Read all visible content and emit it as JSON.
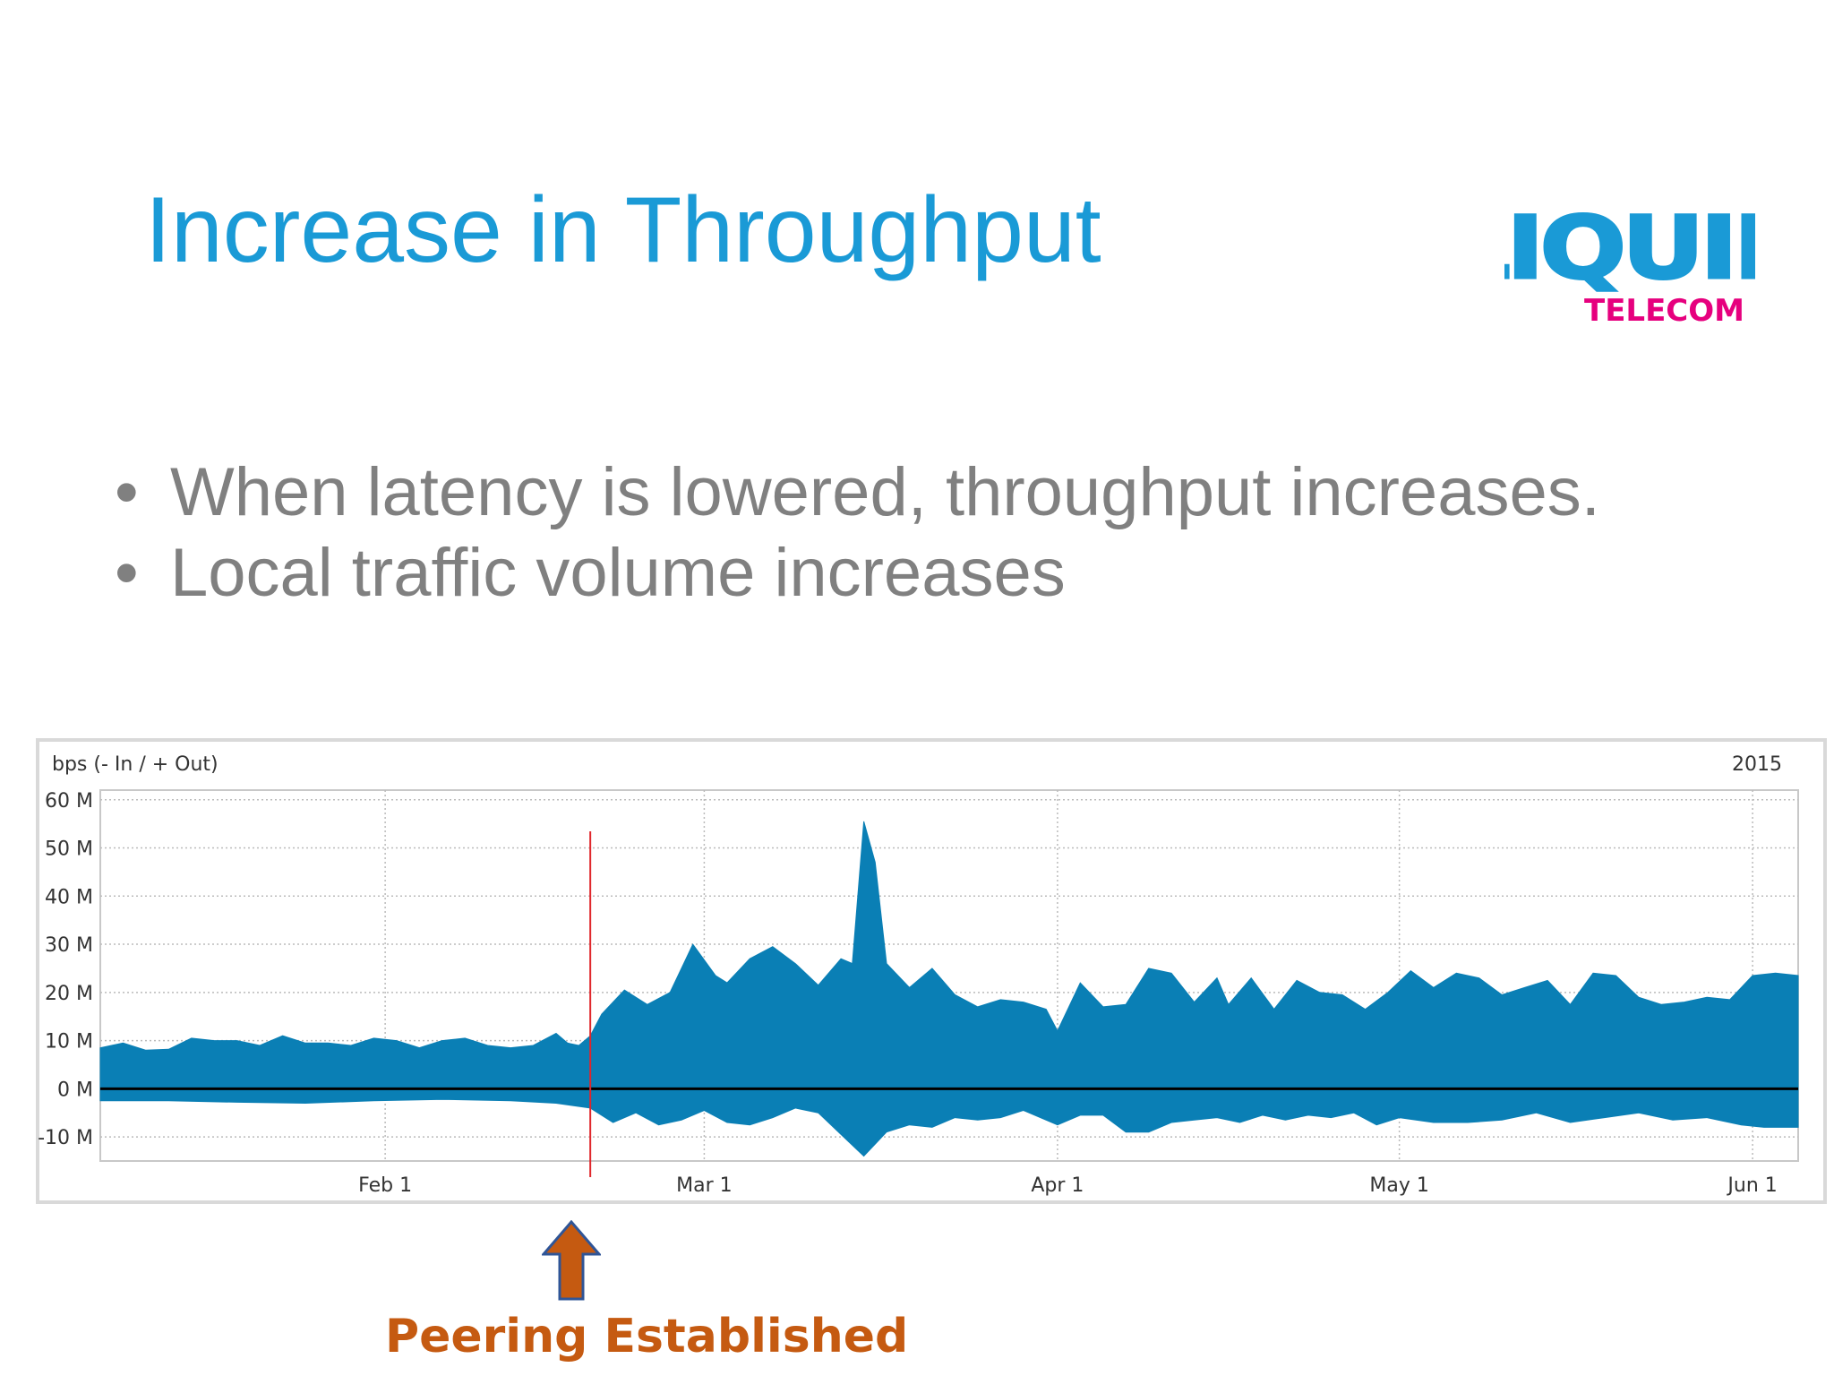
{
  "slide": {
    "title": "Increase in Throughput",
    "bullets": [
      "When latency is lowered, throughput increases.",
      "Local traffic volume increases"
    ],
    "logo": {
      "word": "LIQUID",
      "subword": "TELECOM",
      "word_color": "#1a9ad6",
      "subword_color": "#e6007e"
    },
    "annotation": {
      "label": "Peering Established",
      "color": "#c55a11",
      "icon": "up-arrow-icon"
    }
  },
  "chart_data": {
    "type": "area",
    "ylabel": "bps (- In / + Out)",
    "year_label": "2015",
    "ylim": [
      -15,
      62
    ],
    "yticks": [
      60,
      50,
      40,
      30,
      20,
      10,
      0,
      -10
    ],
    "ytick_labels": [
      "60 M",
      "50 M",
      "40 M",
      "30 M",
      "20 M",
      "10 M",
      "0 M",
      "-10 M"
    ],
    "x_domain": [
      "2015-01-07",
      "2015-06-05"
    ],
    "xticks": [
      {
        "date": "2015-02-01",
        "label": "Feb 1"
      },
      {
        "date": "2015-03-01",
        "label": "Mar 1"
      },
      {
        "date": "2015-04-01",
        "label": "Apr 1"
      },
      {
        "date": "2015-05-01",
        "label": "May 1"
      },
      {
        "date": "2015-06-01",
        "label": "Jun 1"
      }
    ],
    "marker_date": "2015-02-19",
    "grid": true,
    "fill_color": "#0a7fb5",
    "marker_color": "#e0262b",
    "series": [
      {
        "name": "Out",
        "points": [
          [
            "2015-01-07",
            8.5
          ],
          [
            "2015-01-09",
            9.5
          ],
          [
            "2015-01-11",
            8.0
          ],
          [
            "2015-01-13",
            8.2
          ],
          [
            "2015-01-15",
            10.5
          ],
          [
            "2015-01-17",
            10.0
          ],
          [
            "2015-01-19",
            10.0
          ],
          [
            "2015-01-21",
            9.0
          ],
          [
            "2015-01-23",
            11.0
          ],
          [
            "2015-01-25",
            9.5
          ],
          [
            "2015-01-27",
            9.5
          ],
          [
            "2015-01-29",
            9.0
          ],
          [
            "2015-01-31",
            10.5
          ],
          [
            "2015-02-02",
            10.0
          ],
          [
            "2015-02-04",
            8.5
          ],
          [
            "2015-02-06",
            10.0
          ],
          [
            "2015-02-08",
            10.5
          ],
          [
            "2015-02-10",
            9.0
          ],
          [
            "2015-02-12",
            8.5
          ],
          [
            "2015-02-14",
            9.0
          ],
          [
            "2015-02-16",
            11.5
          ],
          [
            "2015-02-17",
            9.5
          ],
          [
            "2015-02-18",
            9.0
          ],
          [
            "2015-02-19",
            11.0
          ],
          [
            "2015-02-20",
            15.5
          ],
          [
            "2015-02-22",
            20.5
          ],
          [
            "2015-02-24",
            17.5
          ],
          [
            "2015-02-26",
            20.0
          ],
          [
            "2015-02-28",
            30.0
          ],
          [
            "2015-03-02",
            23.5
          ],
          [
            "2015-03-03",
            22.0
          ],
          [
            "2015-03-05",
            27.0
          ],
          [
            "2015-03-07",
            29.5
          ],
          [
            "2015-03-09",
            26.0
          ],
          [
            "2015-03-11",
            21.5
          ],
          [
            "2015-03-13",
            27.0
          ],
          [
            "2015-03-14",
            26.0
          ],
          [
            "2015-03-15",
            55.5
          ],
          [
            "2015-03-16",
            47.0
          ],
          [
            "2015-03-17",
            26.0
          ],
          [
            "2015-03-19",
            21.0
          ],
          [
            "2015-03-21",
            25.0
          ],
          [
            "2015-03-23",
            19.5
          ],
          [
            "2015-03-25",
            17.0
          ],
          [
            "2015-03-27",
            18.5
          ],
          [
            "2015-03-29",
            18.0
          ],
          [
            "2015-03-31",
            16.5
          ],
          [
            "2015-04-01",
            12.0
          ],
          [
            "2015-04-03",
            22.0
          ],
          [
            "2015-04-05",
            17.0
          ],
          [
            "2015-04-07",
            17.5
          ],
          [
            "2015-04-09",
            25.0
          ],
          [
            "2015-04-11",
            24.0
          ],
          [
            "2015-04-13",
            18.0
          ],
          [
            "2015-04-15",
            23.0
          ],
          [
            "2015-04-16",
            17.5
          ],
          [
            "2015-04-18",
            23.0
          ],
          [
            "2015-04-20",
            16.5
          ],
          [
            "2015-04-22",
            22.5
          ],
          [
            "2015-04-24",
            20.0
          ],
          [
            "2015-04-26",
            19.5
          ],
          [
            "2015-04-28",
            16.5
          ],
          [
            "2015-04-30",
            20.0
          ],
          [
            "2015-05-02",
            24.5
          ],
          [
            "2015-05-04",
            21.0
          ],
          [
            "2015-05-06",
            24.0
          ],
          [
            "2015-05-08",
            23.0
          ],
          [
            "2015-05-10",
            19.5
          ],
          [
            "2015-05-12",
            21.0
          ],
          [
            "2015-05-14",
            22.5
          ],
          [
            "2015-05-16",
            17.5
          ],
          [
            "2015-05-18",
            24.0
          ],
          [
            "2015-05-20",
            23.5
          ],
          [
            "2015-05-22",
            19.0
          ],
          [
            "2015-05-24",
            17.5
          ],
          [
            "2015-05-26",
            18.0
          ],
          [
            "2015-05-28",
            19.0
          ],
          [
            "2015-05-30",
            18.5
          ],
          [
            "2015-06-01",
            23.5
          ],
          [
            "2015-06-03",
            24.0
          ],
          [
            "2015-06-05",
            23.5
          ]
        ]
      },
      {
        "name": "In",
        "points": [
          [
            "2015-01-07",
            -2.5
          ],
          [
            "2015-01-13",
            -2.5
          ],
          [
            "2015-01-19",
            -2.8
          ],
          [
            "2015-01-25",
            -3.0
          ],
          [
            "2015-01-31",
            -2.5
          ],
          [
            "2015-02-06",
            -2.2
          ],
          [
            "2015-02-12",
            -2.5
          ],
          [
            "2015-02-16",
            -3.0
          ],
          [
            "2015-02-19",
            -4.0
          ],
          [
            "2015-02-21",
            -7.0
          ],
          [
            "2015-02-23",
            -5.0
          ],
          [
            "2015-02-25",
            -7.5
          ],
          [
            "2015-02-27",
            -6.5
          ],
          [
            "2015-03-01",
            -4.5
          ],
          [
            "2015-03-03",
            -7.0
          ],
          [
            "2015-03-05",
            -7.5
          ],
          [
            "2015-03-07",
            -6.0
          ],
          [
            "2015-03-09",
            -4.0
          ],
          [
            "2015-03-11",
            -5.0
          ],
          [
            "2015-03-15",
            -14.0
          ],
          [
            "2015-03-17",
            -9.0
          ],
          [
            "2015-03-19",
            -7.5
          ],
          [
            "2015-03-21",
            -8.0
          ],
          [
            "2015-03-23",
            -6.0
          ],
          [
            "2015-03-25",
            -6.5
          ],
          [
            "2015-03-27",
            -6.0
          ],
          [
            "2015-03-29",
            -4.5
          ],
          [
            "2015-04-01",
            -7.5
          ],
          [
            "2015-04-03",
            -5.5
          ],
          [
            "2015-04-05",
            -5.5
          ],
          [
            "2015-04-07",
            -9.0
          ],
          [
            "2015-04-09",
            -9.0
          ],
          [
            "2015-04-11",
            -7.0
          ],
          [
            "2015-04-13",
            -6.5
          ],
          [
            "2015-04-15",
            -6.0
          ],
          [
            "2015-04-17",
            -7.0
          ],
          [
            "2015-04-19",
            -5.5
          ],
          [
            "2015-04-21",
            -6.5
          ],
          [
            "2015-04-23",
            -5.5
          ],
          [
            "2015-04-25",
            -6.0
          ],
          [
            "2015-04-27",
            -5.0
          ],
          [
            "2015-04-29",
            -7.5
          ],
          [
            "2015-05-01",
            -6.0
          ],
          [
            "2015-05-04",
            -7.0
          ],
          [
            "2015-05-07",
            -7.0
          ],
          [
            "2015-05-10",
            -6.5
          ],
          [
            "2015-05-13",
            -5.0
          ],
          [
            "2015-05-16",
            -7.0
          ],
          [
            "2015-05-19",
            -6.0
          ],
          [
            "2015-05-22",
            -5.0
          ],
          [
            "2015-05-25",
            -6.5
          ],
          [
            "2015-05-28",
            -6.0
          ],
          [
            "2015-05-31",
            -7.5
          ],
          [
            "2015-06-02",
            -8.0
          ],
          [
            "2015-06-05",
            -8.0
          ]
        ]
      }
    ]
  }
}
